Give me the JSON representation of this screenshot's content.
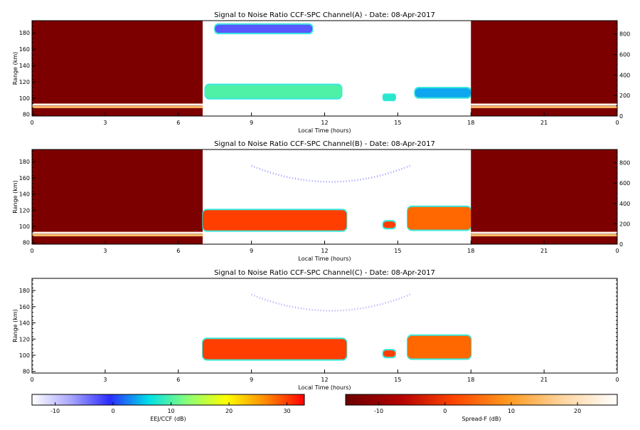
{
  "chart_data": [
    {
      "type": "heatmap",
      "title": "Signal to Noise Ratio CCF-SPC Channel(A) - Date: 08-Apr-2017",
      "xlabel": "Local Time (hours)",
      "ylabel": "Range (km)",
      "xlim": [
        0,
        24
      ],
      "ylim": [
        78,
        195
      ],
      "xticks": [
        "0",
        "3",
        "6",
        "9",
        "12",
        "15",
        "18",
        "21",
        "0"
      ],
      "yticks": [
        "80",
        "100",
        "120",
        "140",
        "160",
        "180"
      ],
      "right_ylim": [
        0,
        930
      ],
      "right_yticks": [
        "0",
        "200",
        "400",
        "600",
        "800"
      ],
      "segments": [
        {
          "x": [
            0,
            7
          ],
          "colorscale": "Spread-F",
          "background_db": -13,
          "features": [
            {
              "kind": "line",
              "range_km": 92,
              "value_db": 24
            },
            {
              "kind": "line",
              "range_km": 89,
              "value_db": 14
            }
          ]
        },
        {
          "x": [
            7,
            18
          ],
          "colorscale": "EEJ/CCF",
          "features": [
            {
              "kind": "blob",
              "x": [
                7.1,
                12.7
              ],
              "range_km": [
                100,
                116
              ],
              "value_db": 10
            },
            {
              "kind": "blob",
              "x": [
                7.5,
                11.5
              ],
              "range_km": [
                180,
                190
              ],
              "value_db": -3
            },
            {
              "kind": "blob",
              "x": [
                14.4,
                14.9
              ],
              "range_km": [
                98,
                104
              ],
              "value_db": 8
            },
            {
              "kind": "blob",
              "x": [
                15.7,
                18
              ],
              "range_km": [
                101,
                112
              ],
              "value_db": 4
            }
          ]
        },
        {
          "x": [
            18,
            24
          ],
          "colorscale": "Spread-F",
          "background_db": -13,
          "features": [
            {
              "kind": "line",
              "range_km": 92,
              "value_db": 24
            },
            {
              "kind": "line",
              "range_km": 89,
              "value_db": 14
            }
          ]
        }
      ]
    },
    {
      "type": "heatmap",
      "title": "Signal to Noise Ratio CCF-SPC Channel(B) - Date: 08-Apr-2017",
      "xlabel": "Local Time (hours)",
      "ylabel": "Range (km)",
      "xlim": [
        0,
        24
      ],
      "ylim": [
        78,
        195
      ],
      "xticks": [
        "0",
        "3",
        "6",
        "9",
        "12",
        "15",
        "18",
        "21",
        "0"
      ],
      "yticks": [
        "80",
        "100",
        "120",
        "140",
        "160",
        "180"
      ],
      "right_ylim": [
        0,
        930
      ],
      "right_yticks": [
        "0",
        "200",
        "400",
        "600",
        "800"
      ],
      "segments": [
        {
          "x": [
            0,
            7
          ],
          "colorscale": "Spread-F",
          "background_db": -13,
          "features": [
            {
              "kind": "line",
              "range_km": 92,
              "value_db": 24
            },
            {
              "kind": "line",
              "range_km": 89,
              "value_db": 14
            }
          ]
        },
        {
          "x": [
            7,
            18
          ],
          "colorscale": "EEJ/CCF",
          "features": [
            {
              "kind": "blob",
              "x": [
                7,
                12.9
              ],
              "range_km": [
                95,
                120
              ],
              "value_db": 30
            },
            {
              "kind": "blob",
              "x": [
                14.4,
                14.9
              ],
              "range_km": [
                98,
                106
              ],
              "value_db": 30
            },
            {
              "kind": "blob",
              "x": [
                15.4,
                18
              ],
              "range_km": [
                96,
                124
              ],
              "value_db": 28
            },
            {
              "kind": "arc",
              "x": [
                9,
                15.5
              ],
              "range_km": [
                150,
                175
              ],
              "value_db": -5
            }
          ]
        },
        {
          "x": [
            18,
            24
          ],
          "colorscale": "Spread-F",
          "background_db": -13,
          "features": [
            {
              "kind": "line",
              "range_km": 92,
              "value_db": 24
            },
            {
              "kind": "line",
              "range_km": 89,
              "value_db": 14
            }
          ]
        }
      ]
    },
    {
      "type": "heatmap",
      "title": "Signal to Noise Ratio CCF-SPC Channel(C) - Date: 08-Apr-2017",
      "xlabel": "Local Time (hours)",
      "ylabel": "Range (km)",
      "xlim": [
        0,
        24
      ],
      "ylim": [
        78,
        195
      ],
      "xticks": [
        "0",
        "3",
        "6",
        "9",
        "12",
        "15",
        "18",
        "21",
        "0"
      ],
      "yticks": [
        "80",
        "100",
        "120",
        "140",
        "160",
        "180"
      ],
      "segments": [
        {
          "x": [
            7,
            18
          ],
          "colorscale": "EEJ/CCF",
          "features": [
            {
              "kind": "blob",
              "x": [
                7,
                12.9
              ],
              "range_km": [
                95,
                120
              ],
              "value_db": 30
            },
            {
              "kind": "blob",
              "x": [
                14.4,
                14.9
              ],
              "range_km": [
                98,
                106
              ],
              "value_db": 30
            },
            {
              "kind": "blob",
              "x": [
                15.4,
                18
              ],
              "range_km": [
                96,
                124
              ],
              "value_db": 28
            },
            {
              "kind": "arc",
              "x": [
                9,
                15.5
              ],
              "range_km": [
                150,
                175
              ],
              "value_db": -6
            }
          ]
        }
      ]
    }
  ],
  "colorbars": [
    {
      "label": "EEJ/CCF (dB)",
      "range": [
        -14,
        33
      ],
      "ticks": [
        "-10",
        "0",
        "10",
        "20",
        "30"
      ],
      "colors": [
        "#ffffff",
        "#a9a6ff",
        "#2b2bff",
        "#00dfe7",
        "#8aff77",
        "#ffff00",
        "#ff8a00",
        "#ff0000"
      ]
    },
    {
      "label": "Spread-F (dB)",
      "range": [
        -15,
        26
      ],
      "ticks": [
        "-10",
        "0",
        "10",
        "20"
      ],
      "colors": [
        "#6b0000",
        "#b30000",
        "#ff4500",
        "#ff9a20",
        "#ffd5a0",
        "#ffffff"
      ]
    }
  ]
}
